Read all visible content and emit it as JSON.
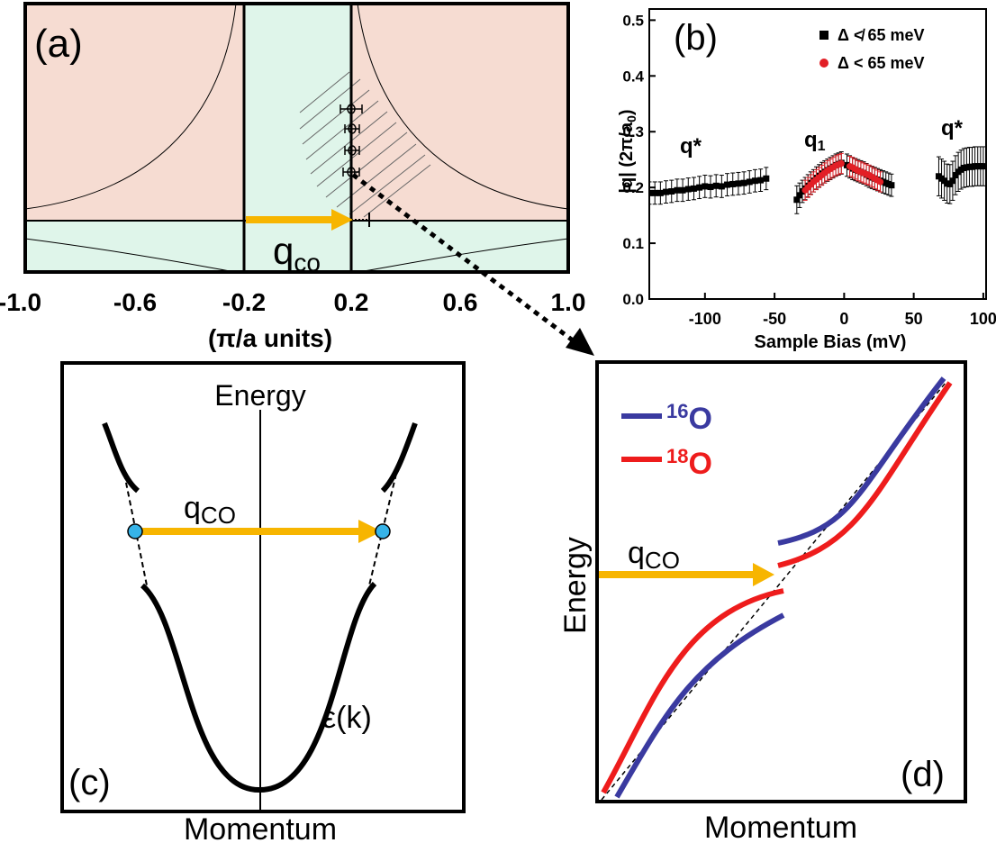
{
  "colors": {
    "pink": "#f6dcd2",
    "mint": "#dff5ea",
    "arrow": "#f7b500",
    "blue_line": "#3a3aa0",
    "red_line": "#ee1c1c",
    "dot_blue": "#36b3e8",
    "red_marker": "#e21f26",
    "black": "#000000"
  },
  "panel_a": {
    "label": "(a)",
    "q_main": "q",
    "q_sub": "co",
    "axis_title": "(π/a units)",
    "ticks": [
      "-1.0",
      "-0.6",
      "-0.2",
      "0.2",
      "0.6",
      "1.0"
    ]
  },
  "panel_b": {
    "label": "(b)",
    "ylabel_main": "|q| (2π/a",
    "ylabel_sub": "0",
    "ylabel_end": ")",
    "xlabel": "Sample Bias (mV)",
    "legend_black": "Δ ≮ 65 meV",
    "legend_red": "Δ < 65 meV",
    "ann_qstar_left": "q*",
    "ann_q1_main": "q",
    "ann_q1_sub": "1",
    "ann_qstar_right": "q*",
    "chart_data": {
      "type": "scatter",
      "title": "",
      "xlabel": "Sample Bias (mV)",
      "ylabel": "|q| (2π/a0)",
      "xlim": [
        -140,
        102
      ],
      "ylim": [
        0,
        0.52
      ],
      "xticks": [
        -100,
        -50,
        0,
        50,
        100
      ],
      "xtick_labels": [
        "-100",
        "-50",
        "0",
        "50",
        "100"
      ],
      "yticks": [
        0.0,
        0.1,
        0.2,
        0.3,
        0.4,
        0.5
      ],
      "ytick_labels": [
        "0.0",
        "0.1",
        "0.2",
        "0.3",
        "0.4",
        "0.5"
      ],
      "series": [
        {
          "name": "Δ ≮ 65 meV",
          "color": "#000000",
          "x": [
            -140,
            -136,
            -132,
            -128,
            -124,
            -120,
            -116,
            -112,
            -108,
            -104,
            -100,
            -96,
            -92,
            -88,
            -84,
            -80,
            -76,
            -72,
            -68,
            -64,
            -60,
            -56,
            -34,
            -32,
            -30,
            -28,
            -26,
            -24,
            -22,
            -20,
            -18,
            -16,
            -14,
            -12,
            -10,
            -8,
            -6,
            -4,
            -2,
            2,
            4,
            6,
            8,
            10,
            12,
            14,
            16,
            18,
            20,
            22,
            24,
            26,
            28,
            30,
            32,
            34,
            68,
            70,
            72,
            74,
            76,
            78,
            80,
            82,
            84,
            86,
            88,
            90,
            92,
            94,
            96,
            98,
            100
          ],
          "y": [
            0.19,
            0.19,
            0.19,
            0.192,
            0.193,
            0.195,
            0.195,
            0.197,
            0.198,
            0.2,
            0.202,
            0.201,
            0.203,
            0.202,
            0.205,
            0.206,
            0.207,
            0.208,
            0.21,
            0.212,
            0.213,
            0.216,
            0.178,
            0.186,
            0.193,
            0.198,
            0.203,
            0.208,
            0.212,
            0.217,
            0.221,
            0.225,
            0.228,
            0.231,
            0.234,
            0.237,
            0.24,
            0.242,
            0.244,
            0.24,
            0.237,
            0.234,
            0.232,
            0.23,
            0.228,
            0.226,
            0.223,
            0.22,
            0.218,
            0.216,
            0.214,
            0.212,
            0.21,
            0.208,
            0.206,
            0.204,
            0.22,
            0.216,
            0.212,
            0.207,
            0.206,
            0.212,
            0.222,
            0.228,
            0.232,
            0.235,
            0.236,
            0.237,
            0.237,
            0.238,
            0.238,
            0.238,
            0.238
          ],
          "err": [
            0.02,
            0.02,
            0.02,
            0.02,
            0.02,
            0.02,
            0.02,
            0.02,
            0.02,
            0.02,
            0.02,
            0.02,
            0.02,
            0.02,
            0.02,
            0.02,
            0.02,
            0.02,
            0.02,
            0.02,
            0.02,
            0.02,
            0.025,
            0.022,
            0.02,
            0.02,
            0.02,
            0.02,
            0.02,
            0.02,
            0.02,
            0.02,
            0.02,
            0.02,
            0.02,
            0.02,
            0.02,
            0.02,
            0.02,
            0.02,
            0.02,
            0.02,
            0.02,
            0.02,
            0.02,
            0.02,
            0.02,
            0.02,
            0.02,
            0.02,
            0.02,
            0.02,
            0.02,
            0.02,
            0.02,
            0.02,
            0.035,
            0.035,
            0.035,
            0.035,
            0.035,
            0.035,
            0.035,
            0.035,
            0.035,
            0.035,
            0.035,
            0.035,
            0.035,
            0.035,
            0.035,
            0.035,
            0.035
          ]
        },
        {
          "name": "Δ < 65 meV",
          "color": "#e21f26",
          "x": [
            -28,
            -26,
            -24,
            -22,
            -20,
            -18,
            -16,
            -14,
            -12,
            -10,
            -8,
            -6,
            -4,
            -2,
            4,
            6,
            8,
            10,
            12,
            14,
            16,
            18,
            20,
            22,
            24,
            26
          ],
          "y": [
            0.195,
            0.2,
            0.205,
            0.21,
            0.214,
            0.218,
            0.222,
            0.226,
            0.23,
            0.233,
            0.236,
            0.239,
            0.241,
            0.243,
            0.238,
            0.236,
            0.233,
            0.23,
            0.228,
            0.226,
            0.224,
            0.222,
            0.219,
            0.216,
            0.213,
            0.21
          ],
          "err": [
            0.018,
            0.018,
            0.018,
            0.018,
            0.018,
            0.018,
            0.018,
            0.018,
            0.018,
            0.018,
            0.018,
            0.018,
            0.018,
            0.018,
            0.018,
            0.018,
            0.018,
            0.018,
            0.018,
            0.018,
            0.018,
            0.018,
            0.018,
            0.018,
            0.018,
            0.018
          ]
        }
      ]
    }
  },
  "panel_c": {
    "label": "(c)",
    "energy": "Energy",
    "momentum": "Momentum",
    "q_main": "q",
    "q_sub": "CO",
    "dispersion": "ε(k)"
  },
  "panel_d": {
    "label": "(d)",
    "energy": "Energy",
    "momentum": "Momentum",
    "q_main": "q",
    "q_sub": "CO",
    "legend_16_sup": "16",
    "legend_16_main": "O",
    "legend_18_sup": "18",
    "legend_18_main": "O"
  }
}
